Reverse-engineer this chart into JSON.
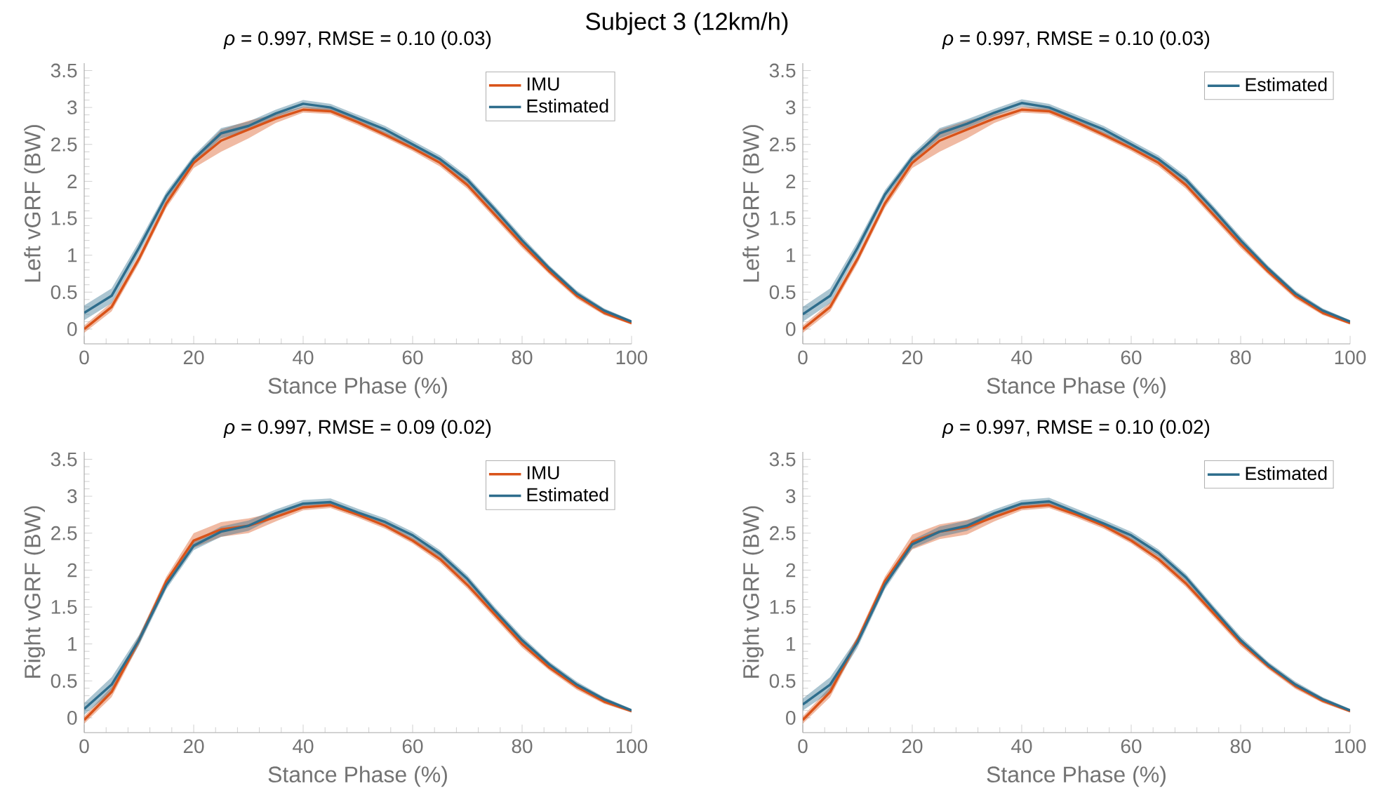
{
  "chart_data": [
    {
      "type": "line",
      "title": "*ρ* = 0.997, RMSE = 0.10 (0.03)",
      "annotations": [
        "Subject 3 (12km/h)"
      ],
      "xlabel": "Stance Phase (%)",
      "ylabel": "Left vGRF (BW)",
      "xlim": [
        0,
        100
      ],
      "ylim": [
        -0.2,
        3.6
      ],
      "xticks": [
        0,
        20,
        40,
        60,
        80,
        100
      ],
      "yticks": [
        0,
        0.5,
        1,
        1.5,
        2,
        2.5,
        3,
        3.5
      ],
      "legend": "top right",
      "x": [
        0,
        5,
        10,
        15,
        20,
        25,
        30,
        35,
        40,
        45,
        50,
        55,
        60,
        65,
        70,
        75,
        80,
        85,
        90,
        95,
        100
      ],
      "series": [
        {
          "name": "IMU",
          "color": "#d95319",
          "values": [
            0,
            0.3,
            0.95,
            1.7,
            2.25,
            2.55,
            2.7,
            2.85,
            2.97,
            2.95,
            2.8,
            2.63,
            2.45,
            2.25,
            1.95,
            1.55,
            1.15,
            0.78,
            0.45,
            0.22,
            0.08
          ],
          "lower": [
            -0.05,
            0.24,
            0.89,
            1.64,
            2.18,
            2.4,
            2.58,
            2.79,
            2.93,
            2.91,
            2.76,
            2.59,
            2.41,
            2.2,
            1.9,
            1.5,
            1.1,
            0.74,
            0.41,
            0.19,
            0.06
          ],
          "upper": [
            0.05,
            0.36,
            1.01,
            1.76,
            2.32,
            2.7,
            2.82,
            2.91,
            3.01,
            2.99,
            2.84,
            2.67,
            2.49,
            2.3,
            2.0,
            1.6,
            1.2,
            0.82,
            0.49,
            0.25,
            0.1
          ]
        },
        {
          "name": "Estimated",
          "color": "#2e6d8c",
          "values": [
            0.22,
            0.45,
            1.1,
            1.8,
            2.3,
            2.65,
            2.75,
            2.92,
            3.05,
            3.0,
            2.85,
            2.7,
            2.5,
            2.3,
            2.02,
            1.62,
            1.2,
            0.82,
            0.48,
            0.25,
            0.1
          ],
          "lower": [
            0.12,
            0.35,
            1.02,
            1.74,
            2.25,
            2.58,
            2.69,
            2.87,
            3.0,
            2.95,
            2.8,
            2.65,
            2.45,
            2.25,
            1.97,
            1.57,
            1.15,
            0.78,
            0.44,
            0.22,
            0.08
          ],
          "upper": [
            0.32,
            0.55,
            1.18,
            1.86,
            2.35,
            2.72,
            2.81,
            2.97,
            3.1,
            3.05,
            2.9,
            2.75,
            2.55,
            2.35,
            2.07,
            1.67,
            1.25,
            0.86,
            0.52,
            0.28,
            0.12
          ]
        }
      ]
    },
    {
      "type": "line",
      "title": "*ρ* = 0.997, RMSE = 0.10 (0.03)",
      "xlabel": "Stance Phase (%)",
      "ylabel": "Left vGRF (BW)",
      "xlim": [
        0,
        100
      ],
      "ylim": [
        -0.2,
        3.6
      ],
      "xticks": [
        0,
        20,
        40,
        60,
        80,
        100
      ],
      "yticks": [
        0,
        0.5,
        1,
        1.5,
        2,
        2.5,
        3,
        3.5
      ],
      "legend": "top right",
      "x": [
        0,
        5,
        10,
        15,
        20,
        25,
        30,
        35,
        40,
        45,
        50,
        55,
        60,
        65,
        70,
        75,
        80,
        85,
        90,
        95,
        100
      ],
      "series": [
        {
          "color": "#d95319",
          "values": [
            0,
            0.3,
            0.95,
            1.7,
            2.25,
            2.55,
            2.7,
            2.85,
            2.97,
            2.95,
            2.8,
            2.63,
            2.45,
            2.25,
            1.95,
            1.55,
            1.15,
            0.78,
            0.45,
            0.22,
            0.08
          ],
          "lower": [
            -0.05,
            0.24,
            0.89,
            1.64,
            2.18,
            2.4,
            2.58,
            2.79,
            2.93,
            2.91,
            2.76,
            2.59,
            2.41,
            2.2,
            1.9,
            1.5,
            1.1,
            0.74,
            0.41,
            0.19,
            0.06
          ],
          "upper": [
            0.05,
            0.36,
            1.01,
            1.76,
            2.32,
            2.7,
            2.82,
            2.91,
            3.01,
            2.99,
            2.84,
            2.67,
            2.49,
            2.3,
            2.0,
            1.6,
            1.2,
            0.82,
            0.49,
            0.25,
            0.1
          ]
        },
        {
          "name": "Estimated",
          "color": "#2e6d8c",
          "values": [
            0.2,
            0.45,
            1.1,
            1.82,
            2.32,
            2.65,
            2.78,
            2.93,
            3.06,
            3.0,
            2.85,
            2.7,
            2.5,
            2.3,
            2.02,
            1.62,
            1.2,
            0.82,
            0.48,
            0.25,
            0.1
          ],
          "lower": [
            0.1,
            0.35,
            1.02,
            1.76,
            2.27,
            2.58,
            2.72,
            2.88,
            3.01,
            2.95,
            2.8,
            2.65,
            2.45,
            2.25,
            1.97,
            1.57,
            1.15,
            0.78,
            0.44,
            0.22,
            0.08
          ],
          "upper": [
            0.3,
            0.55,
            1.18,
            1.88,
            2.37,
            2.72,
            2.84,
            2.98,
            3.11,
            3.05,
            2.9,
            2.75,
            2.55,
            2.35,
            2.07,
            1.67,
            1.25,
            0.86,
            0.52,
            0.28,
            0.12
          ]
        }
      ]
    },
    {
      "type": "line",
      "title": "*ρ* = 0.997, RMSE = 0.09 (0.02)",
      "xlabel": "Stance Phase (%)",
      "ylabel": "Right vGRF (BW)",
      "xlim": [
        0,
        100
      ],
      "ylim": [
        -0.2,
        3.6
      ],
      "xticks": [
        0,
        20,
        40,
        60,
        80,
        100
      ],
      "yticks": [
        0,
        0.5,
        1,
        1.5,
        2,
        2.5,
        3,
        3.5
      ],
      "legend": "top right",
      "x": [
        0,
        5,
        10,
        15,
        20,
        25,
        30,
        35,
        40,
        45,
        50,
        55,
        60,
        65,
        70,
        75,
        80,
        85,
        90,
        95,
        100
      ],
      "series": [
        {
          "name": "IMU",
          "color": "#d95319",
          "values": [
            -0.03,
            0.35,
            1.05,
            1.85,
            2.4,
            2.55,
            2.6,
            2.72,
            2.85,
            2.88,
            2.75,
            2.6,
            2.4,
            2.15,
            1.8,
            1.4,
            1.0,
            0.68,
            0.42,
            0.22,
            0.09
          ],
          "lower": [
            -0.08,
            0.28,
            0.99,
            1.79,
            2.3,
            2.45,
            2.5,
            2.66,
            2.81,
            2.84,
            2.71,
            2.56,
            2.36,
            2.1,
            1.75,
            1.35,
            0.95,
            0.64,
            0.38,
            0.19,
            0.07
          ],
          "upper": [
            0.02,
            0.42,
            1.11,
            1.91,
            2.5,
            2.65,
            2.7,
            2.78,
            2.89,
            2.92,
            2.79,
            2.64,
            2.44,
            2.2,
            1.85,
            1.45,
            1.05,
            0.72,
            0.46,
            0.25,
            0.11
          ]
        },
        {
          "name": "Estimated",
          "color": "#2e6d8c",
          "values": [
            0.12,
            0.45,
            1.05,
            1.8,
            2.33,
            2.52,
            2.6,
            2.77,
            2.9,
            2.92,
            2.78,
            2.65,
            2.47,
            2.22,
            1.88,
            1.45,
            1.05,
            0.72,
            0.45,
            0.25,
            0.1
          ],
          "lower": [
            0.04,
            0.35,
            0.98,
            1.74,
            2.27,
            2.45,
            2.53,
            2.72,
            2.85,
            2.87,
            2.73,
            2.6,
            2.42,
            2.17,
            1.83,
            1.4,
            1.0,
            0.68,
            0.41,
            0.22,
            0.08
          ],
          "upper": [
            0.2,
            0.55,
            1.12,
            1.86,
            2.39,
            2.59,
            2.67,
            2.82,
            2.95,
            2.97,
            2.83,
            2.7,
            2.52,
            2.27,
            1.93,
            1.5,
            1.1,
            0.76,
            0.49,
            0.28,
            0.12
          ]
        }
      ]
    },
    {
      "type": "line",
      "title": "*ρ* = 0.997, RMSE = 0.10 (0.02)",
      "xlabel": "Stance Phase (%)",
      "ylabel": "Right vGRF (BW)",
      "xlim": [
        0,
        100
      ],
      "ylim": [
        -0.2,
        3.6
      ],
      "xticks": [
        0,
        20,
        40,
        60,
        80,
        100
      ],
      "yticks": [
        0,
        0.5,
        1,
        1.5,
        2,
        2.5,
        3,
        3.5
      ],
      "legend": "top right",
      "x": [
        0,
        5,
        10,
        15,
        20,
        25,
        30,
        35,
        40,
        45,
        50,
        55,
        60,
        65,
        70,
        75,
        80,
        85,
        90,
        95,
        100
      ],
      "series": [
        {
          "color": "#d95319",
          "values": [
            -0.03,
            0.35,
            1.05,
            1.85,
            2.38,
            2.52,
            2.58,
            2.72,
            2.85,
            2.88,
            2.75,
            2.6,
            2.4,
            2.15,
            1.82,
            1.42,
            1.02,
            0.7,
            0.43,
            0.23,
            0.09
          ],
          "lower": [
            -0.08,
            0.28,
            0.99,
            1.79,
            2.28,
            2.42,
            2.48,
            2.66,
            2.81,
            2.84,
            2.71,
            2.56,
            2.36,
            2.1,
            1.77,
            1.37,
            0.97,
            0.66,
            0.39,
            0.2,
            0.07
          ],
          "upper": [
            0.02,
            0.42,
            1.11,
            1.91,
            2.48,
            2.62,
            2.68,
            2.78,
            2.89,
            2.92,
            2.77,
            2.64,
            2.44,
            2.2,
            1.87,
            1.47,
            1.07,
            0.74,
            0.47,
            0.26,
            0.11
          ]
        },
        {
          "name": "Estimated",
          "color": "#2e6d8c",
          "values": [
            0.18,
            0.45,
            1.02,
            1.8,
            2.35,
            2.52,
            2.6,
            2.77,
            2.9,
            2.93,
            2.78,
            2.63,
            2.47,
            2.23,
            1.9,
            1.47,
            1.05,
            0.72,
            0.45,
            0.25,
            0.1
          ],
          "lower": [
            0.1,
            0.35,
            0.95,
            1.74,
            2.29,
            2.45,
            2.53,
            2.72,
            2.85,
            2.88,
            2.75,
            2.58,
            2.42,
            2.18,
            1.85,
            1.42,
            1.0,
            0.68,
            0.41,
            0.22,
            0.08
          ],
          "upper": [
            0.26,
            0.55,
            1.09,
            1.86,
            2.41,
            2.59,
            2.67,
            2.82,
            2.95,
            2.98,
            2.83,
            2.68,
            2.52,
            2.28,
            1.95,
            1.52,
            1.1,
            0.76,
            0.49,
            0.28,
            0.12
          ]
        }
      ]
    }
  ]
}
